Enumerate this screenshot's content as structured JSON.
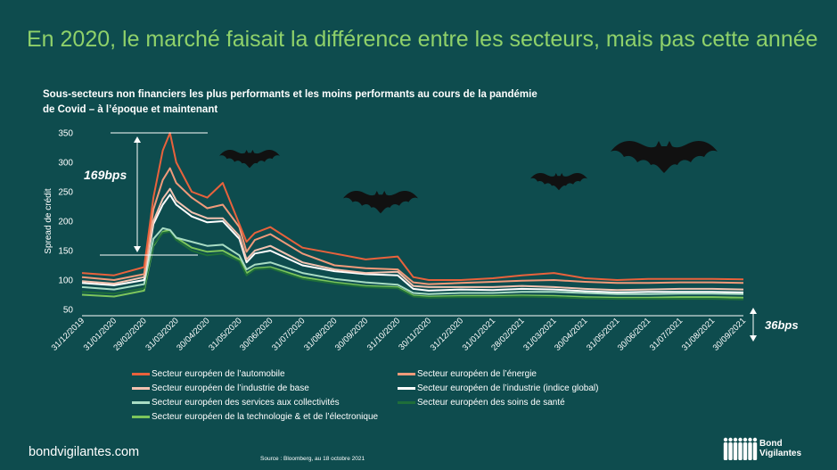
{
  "header": {
    "title": "En 2020, le marché faisait la différence entre les secteurs, mais pas cette année",
    "subtitle": "Sous-secteurs non financiers les plus performants et les moins performants au cours de la pandémie de Covid – à l’époque et maintenant"
  },
  "annotations": {
    "left": "169bps",
    "right": "36bps"
  },
  "footer": {
    "url": "bondvigilantes.com",
    "source": "Source : Bloomberg, au 18 octobre 2021",
    "logo_line1": "Bond",
    "logo_line2": "Vigilantes"
  },
  "decorations": {
    "icon": "bat-icon"
  },
  "chart_data": {
    "type": "line",
    "title": "Sous-secteurs non financiers les plus performants et les moins performants au cours de la pandémie de Covid – à l’époque et maintenant",
    "ylabel": "Spread de crédit",
    "ylim": [
      50,
      350
    ],
    "yticks": [
      50,
      100,
      150,
      200,
      250,
      300,
      350
    ],
    "xlim": [
      "2019-12-31",
      "2021-09-30"
    ],
    "xticks": [
      "31/12/2019",
      "31/01/2020",
      "29/02/2020",
      "31/03/2020",
      "30/04/2020",
      "31/05/2020",
      "30/06/2020",
      "31/07/2020",
      "31/08/2020",
      "30/09/2020",
      "31/10/2020",
      "30/11/2020",
      "31/12/2020",
      "31/01/2021",
      "28/02/2021",
      "31/03/2021",
      "30/04/2021",
      "31/05/2021",
      "30/06/2021",
      "31/07/2021",
      "31/08/2021",
      "30/09/2021"
    ],
    "grid": false,
    "legend_position": "bottom",
    "x": [
      "31/12/2019",
      "31/01/2020",
      "29/02/2020",
      "09/03/2020",
      "18/03/2020",
      "25/03/2020",
      "31/03/2020",
      "15/04/2020",
      "30/04/2020",
      "15/05/2020",
      "31/05/2020",
      "07/06/2020",
      "15/06/2020",
      "30/06/2020",
      "31/07/2020",
      "31/08/2020",
      "30/09/2020",
      "31/10/2020",
      "15/11/2020",
      "30/11/2020",
      "31/12/2020",
      "31/01/2021",
      "28/02/2021",
      "31/03/2021",
      "30/04/2021",
      "31/05/2021",
      "30/06/2021",
      "31/07/2021",
      "31/08/2021",
      "30/09/2021"
    ],
    "series": [
      {
        "name": "Secteur européen de l’automobile",
        "color": "#e8623c",
        "values": [
          112,
          108,
          122,
          240,
          320,
          350,
          300,
          250,
          240,
          265,
          195,
          165,
          180,
          190,
          155,
          145,
          135,
          140,
          105,
          100,
          100,
          103,
          108,
          112,
          103,
          100,
          102,
          102,
          102,
          101
        ]
      },
      {
        "name": "Secteur européen de l’énergie",
        "color": "#f09a7a",
        "values": [
          105,
          100,
          110,
          220,
          270,
          290,
          265,
          240,
          222,
          228,
          190,
          148,
          168,
          178,
          145,
          125,
          120,
          118,
          96,
          93,
          95,
          97,
          99,
          100,
          97,
          95,
          95,
          96,
          96,
          95
        ]
      },
      {
        "name": "Secteur européen de l’industrie de base",
        "color": "#f3c2b0",
        "values": [
          98,
          94,
          105,
          200,
          238,
          255,
          235,
          215,
          205,
          205,
          175,
          135,
          150,
          158,
          130,
          118,
          112,
          114,
          90,
          88,
          88,
          88,
          90,
          88,
          85,
          83,
          84,
          85,
          85,
          84
        ]
      },
      {
        "name": "Secteur européen de l’industrie (indice global)",
        "color": "#ffffff",
        "values": [
          95,
          91,
          100,
          195,
          228,
          245,
          228,
          208,
          198,
          200,
          170,
          130,
          145,
          150,
          125,
          115,
          110,
          108,
          85,
          82,
          84,
          83,
          85,
          84,
          81,
          79,
          80,
          80,
          80,
          79
        ]
      },
      {
        "name": "Secteur européen des services aux collectivités",
        "color": "#a8dcc4",
        "values": [
          88,
          84,
          93,
          170,
          188,
          185,
          172,
          165,
          158,
          160,
          142,
          118,
          126,
          130,
          112,
          102,
          96,
          92,
          78,
          76,
          78,
          78,
          80,
          80,
          78,
          76,
          76,
          77,
          77,
          76
        ]
      },
      {
        "name": "Secteur européen des soins de santé",
        "color": "#1e6e3a",
        "values": [
          80,
          77,
          86,
          160,
          180,
          182,
          168,
          150,
          142,
          145,
          132,
          108,
          118,
          120,
          102,
          94,
          88,
          86,
          72,
          70,
          71,
          71,
          72,
          71,
          69,
          68,
          68,
          68,
          68,
          67
        ]
      },
      {
        "name": "Secteur européen de la technologie & et de l’électronique",
        "color": "#7cc55b",
        "values": [
          75,
          72,
          82,
          158,
          182,
          185,
          172,
          155,
          148,
          150,
          135,
          112,
          120,
          122,
          105,
          96,
          90,
          88,
          74,
          72,
          73,
          73,
          74,
          73,
          71,
          70,
          70,
          71,
          71,
          70
        ]
      }
    ]
  }
}
